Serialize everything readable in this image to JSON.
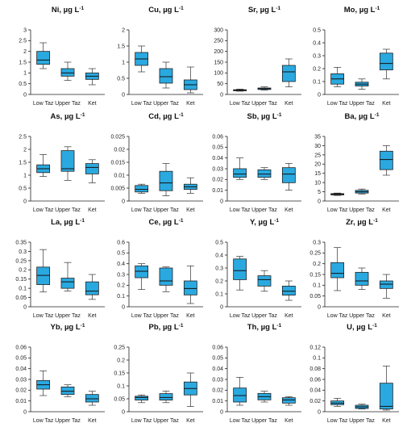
{
  "chart_data": [
    {
      "type": "box",
      "title": "Ni, µg L",
      "title_sup": "-1",
      "categories": [
        "Low Taz",
        "Upper Taz",
        "Ket"
      ],
      "yticks": [
        "0",
        "0.5",
        "1",
        "1.5",
        "2",
        "2.5",
        "3"
      ],
      "ylim": [
        0,
        3
      ],
      "boxes": [
        {
          "min": 1.2,
          "q1": 1.4,
          "median": 1.6,
          "q3": 2.0,
          "max": 2.4
        },
        {
          "min": 0.65,
          "q1": 0.85,
          "median": 1.0,
          "q3": 1.2,
          "max": 1.5
        },
        {
          "min": 0.45,
          "q1": 0.7,
          "median": 0.85,
          "q3": 1.0,
          "max": 1.2
        }
      ]
    },
    {
      "type": "box",
      "title": "Cu, µg L",
      "title_sup": "-1",
      "categories": [
        "Low Taz",
        "Upper Taz",
        "Ket"
      ],
      "yticks": [
        "0",
        "0.5",
        "1",
        "1.5",
        "2"
      ],
      "ylim": [
        0,
        2
      ],
      "boxes": [
        {
          "min": 0.7,
          "q1": 0.9,
          "median": 1.1,
          "q3": 1.3,
          "max": 1.5
        },
        {
          "min": 0.2,
          "q1": 0.35,
          "median": 0.55,
          "q3": 0.8,
          "max": 1.0
        },
        {
          "min": 0.05,
          "q1": 0.15,
          "median": 0.3,
          "q3": 0.45,
          "max": 0.85
        }
      ]
    },
    {
      "type": "box",
      "title": "Sr, µg L",
      "title_sup": "-1",
      "categories": [
        "Low Taz",
        "Upper Taz",
        "Ket"
      ],
      "yticks": [
        "0",
        "50",
        "100",
        "150",
        "200",
        "250",
        "300"
      ],
      "ylim": [
        0,
        300
      ],
      "boxes": [
        {
          "min": 15,
          "q1": 17,
          "median": 20,
          "q3": 22,
          "max": 25
        },
        {
          "min": 20,
          "q1": 23,
          "median": 27,
          "q3": 30,
          "max": 35
        },
        {
          "min": 35,
          "q1": 60,
          "median": 105,
          "q3": 135,
          "max": 165
        }
      ]
    },
    {
      "type": "box",
      "title": "Mo, µg L",
      "title_sup": "-1",
      "categories": [
        "Low Taz",
        "Upper Taz",
        "Ket"
      ],
      "yticks": [
        "0",
        "0.1",
        "0.2",
        "0.3",
        "0.4",
        "0.5"
      ],
      "ylim": [
        0,
        0.5
      ],
      "boxes": [
        {
          "min": 0.06,
          "q1": 0.08,
          "median": 0.12,
          "q3": 0.16,
          "max": 0.21
        },
        {
          "min": 0.04,
          "q1": 0.065,
          "median": 0.08,
          "q3": 0.095,
          "max": 0.12
        },
        {
          "min": 0.12,
          "q1": 0.19,
          "median": 0.24,
          "q3": 0.32,
          "max": 0.35
        }
      ]
    },
    {
      "type": "box",
      "title": "As, µg L",
      "title_sup": "-1",
      "categories": [
        "Low Taz",
        "Upper Taz",
        "Ket"
      ],
      "yticks": [
        "0",
        "0.5",
        "1",
        "1.5",
        "2",
        "2.5"
      ],
      "ylim": [
        0,
        2.5
      ],
      "boxes": [
        {
          "min": 0.95,
          "q1": 1.1,
          "median": 1.25,
          "q3": 1.4,
          "max": 1.8
        },
        {
          "min": 0.8,
          "q1": 1.15,
          "median": 1.25,
          "q3": 1.95,
          "max": 2.1
        },
        {
          "min": 0.7,
          "q1": 1.05,
          "median": 1.3,
          "q3": 1.45,
          "max": 1.6
        }
      ]
    },
    {
      "type": "box",
      "title": "Cd, µg L",
      "title_sup": "-1",
      "categories": [
        "Low Taz",
        "Upper Taz",
        "Ket"
      ],
      "yticks": [
        "0",
        "0.005",
        "0.01",
        "0.015",
        "0.02",
        "0.025"
      ],
      "ylim": [
        0,
        0.025
      ],
      "boxes": [
        {
          "min": 0.003,
          "q1": 0.0035,
          "median": 0.0045,
          "q3": 0.006,
          "max": 0.0065
        },
        {
          "min": 0.002,
          "q1": 0.004,
          "median": 0.007,
          "q3": 0.0115,
          "max": 0.0145
        },
        {
          "min": 0.003,
          "q1": 0.0045,
          "median": 0.0055,
          "q3": 0.0065,
          "max": 0.009
        }
      ]
    },
    {
      "type": "box",
      "title": "Sb, µg L",
      "title_sup": "-1",
      "categories": [
        "Low Taz",
        "Upper Taz",
        "Ket"
      ],
      "yticks": [
        "0",
        "0.01",
        "0.02",
        "0.03",
        "0.04",
        "0.05",
        "0.06"
      ],
      "ylim": [
        0,
        0.06
      ],
      "boxes": [
        {
          "min": 0.02,
          "q1": 0.022,
          "median": 0.025,
          "q3": 0.03,
          "max": 0.04
        },
        {
          "min": 0.02,
          "q1": 0.022,
          "median": 0.025,
          "q3": 0.029,
          "max": 0.031
        },
        {
          "min": 0.01,
          "q1": 0.017,
          "median": 0.025,
          "q3": 0.031,
          "max": 0.035
        }
      ]
    },
    {
      "type": "box",
      "title": "Ba, µg L",
      "title_sup": "-1",
      "categories": [
        "Low Taz",
        "Upper Taz",
        "Ket"
      ],
      "yticks": [
        "0",
        "5",
        "10",
        "15",
        "20",
        "25",
        "30",
        "35"
      ],
      "ylim": [
        0,
        35
      ],
      "boxes": [
        {
          "min": 3,
          "q1": 3.3,
          "median": 3.7,
          "q3": 4.0,
          "max": 4.3
        },
        {
          "min": 3.8,
          "q1": 4.3,
          "median": 5.0,
          "q3": 5.8,
          "max": 6.5
        },
        {
          "min": 14,
          "q1": 17,
          "median": 22.5,
          "q3": 27,
          "max": 30
        }
      ]
    },
    {
      "type": "box",
      "title": "La, µg L",
      "title_sup": "-1",
      "categories": [
        "Low Taz",
        "Upper Taz",
        "Ket"
      ],
      "yticks": [
        "0",
        "0.05",
        "0.1",
        "0.15",
        "0.2",
        "0.25",
        "0.3",
        "0.35"
      ],
      "ylim": [
        0,
        0.35
      ],
      "boxes": [
        {
          "min": 0.08,
          "q1": 0.12,
          "median": 0.17,
          "q3": 0.215,
          "max": 0.31
        },
        {
          "min": 0.085,
          "q1": 0.1,
          "median": 0.135,
          "q3": 0.155,
          "max": 0.24
        },
        {
          "min": 0.04,
          "q1": 0.065,
          "median": 0.085,
          "q3": 0.135,
          "max": 0.175
        }
      ]
    },
    {
      "type": "box",
      "title": "Ce, µg L",
      "title_sup": "-1",
      "categories": [
        "Low Taz",
        "Upper Taz",
        "Ket"
      ],
      "yticks": [
        "0",
        "0.1",
        "0.2",
        "0.3",
        "0.4",
        "0.5",
        "0.6"
      ],
      "ylim": [
        0,
        0.6
      ],
      "boxes": [
        {
          "min": 0.16,
          "q1": 0.27,
          "median": 0.33,
          "q3": 0.38,
          "max": 0.4
        },
        {
          "min": 0.14,
          "q1": 0.2,
          "median": 0.24,
          "q3": 0.36,
          "max": 0.37
        },
        {
          "min": 0.03,
          "q1": 0.11,
          "median": 0.17,
          "q3": 0.24,
          "max": 0.38
        }
      ]
    },
    {
      "type": "box",
      "title": "Y, µg L",
      "title_sup": "-1",
      "categories": [
        "Low Taz",
        "Upper Taz",
        "Ket"
      ],
      "yticks": [
        "0",
        "0.1",
        "0.2",
        "0.3",
        "0.4",
        "0.5"
      ],
      "ylim": [
        0,
        0.5
      ],
      "boxes": [
        {
          "min": 0.13,
          "q1": 0.21,
          "median": 0.28,
          "q3": 0.37,
          "max": 0.39
        },
        {
          "min": 0.12,
          "q1": 0.16,
          "median": 0.21,
          "q3": 0.24,
          "max": 0.28
        },
        {
          "min": 0.05,
          "q1": 0.09,
          "median": 0.12,
          "q3": 0.16,
          "max": 0.2
        }
      ]
    },
    {
      "type": "box",
      "title": "Zr, µg L",
      "title_sup": "-1",
      "categories": [
        "Low Taz",
        "Upper Taz",
        "Ket"
      ],
      "yticks": [
        "0",
        "0.05",
        "0.1",
        "0.15",
        "0.2",
        "0.25",
        "0.3"
      ],
      "ylim": [
        0,
        0.3
      ],
      "boxes": [
        {
          "min": 0.075,
          "q1": 0.135,
          "median": 0.155,
          "q3": 0.205,
          "max": 0.275
        },
        {
          "min": 0.08,
          "q1": 0.1,
          "median": 0.12,
          "q3": 0.16,
          "max": 0.18
        },
        {
          "min": 0.04,
          "q1": 0.085,
          "median": 0.105,
          "q3": 0.12,
          "max": 0.15
        }
      ]
    },
    {
      "type": "box",
      "title": "Yb, µg L",
      "title_sup": "-1",
      "categories": [
        "Low Taz",
        "Upper Taz",
        "Ket"
      ],
      "yticks": [
        "0",
        "0.01",
        "0.02",
        "0.03",
        "0.04",
        "0.05",
        "0.06"
      ],
      "ylim": [
        0,
        0.06
      ],
      "boxes": [
        {
          "min": 0.015,
          "q1": 0.021,
          "median": 0.025,
          "q3": 0.029,
          "max": 0.038
        },
        {
          "min": 0.014,
          "q1": 0.016,
          "median": 0.019,
          "q3": 0.023,
          "max": 0.025
        },
        {
          "min": 0.006,
          "q1": 0.009,
          "median": 0.012,
          "q3": 0.016,
          "max": 0.019
        }
      ]
    },
    {
      "type": "box",
      "title": "Pb, µg L",
      "title_sup": "-1",
      "categories": [
        "Low Taz",
        "Upper Taz",
        "Ket"
      ],
      "yticks": [
        "0",
        "0.05",
        "0.1",
        "0.15",
        "0.2",
        "0.25"
      ],
      "ylim": [
        0,
        0.25
      ],
      "boxes": [
        {
          "min": 0.035,
          "q1": 0.045,
          "median": 0.055,
          "q3": 0.06,
          "max": 0.065
        },
        {
          "min": 0.035,
          "q1": 0.045,
          "median": 0.055,
          "q3": 0.07,
          "max": 0.08
        },
        {
          "min": 0.02,
          "q1": 0.065,
          "median": 0.09,
          "q3": 0.115,
          "max": 0.15
        }
      ]
    },
    {
      "type": "box",
      "title": "Th, µg L",
      "title_sup": "-1",
      "categories": [
        "Low Taz",
        "Upper Taz",
        "Ket"
      ],
      "yticks": [
        "0",
        "0.01",
        "0.02",
        "0.03",
        "0.04",
        "0.05",
        "0.06"
      ],
      "ylim": [
        0,
        0.06
      ],
      "boxes": [
        {
          "min": 0.006,
          "q1": 0.009,
          "median": 0.015,
          "q3": 0.022,
          "max": 0.032
        },
        {
          "min": 0.009,
          "q1": 0.011,
          "median": 0.014,
          "q3": 0.017,
          "max": 0.019
        },
        {
          "min": 0.006,
          "q1": 0.008,
          "median": 0.011,
          "q3": 0.013,
          "max": 0.014
        }
      ]
    },
    {
      "type": "box",
      "title": "U, µg L",
      "title_sup": "-1",
      "categories": [
        "Low Taz",
        "Upper Taz",
        "Ket"
      ],
      "yticks": [
        "0",
        "0.02",
        "0.04",
        "0.06",
        "0.08",
        "0.1",
        "0.12"
      ],
      "ylim": [
        0,
        0.12
      ],
      "boxes": [
        {
          "min": 0.01,
          "q1": 0.013,
          "median": 0.016,
          "q3": 0.02,
          "max": 0.025
        },
        {
          "min": 0.005,
          "q1": 0.006,
          "median": 0.009,
          "q3": 0.012,
          "max": 0.014
        },
        {
          "min": 0.003,
          "q1": 0.005,
          "median": 0.01,
          "q3": 0.053,
          "max": 0.085
        }
      ]
    }
  ]
}
